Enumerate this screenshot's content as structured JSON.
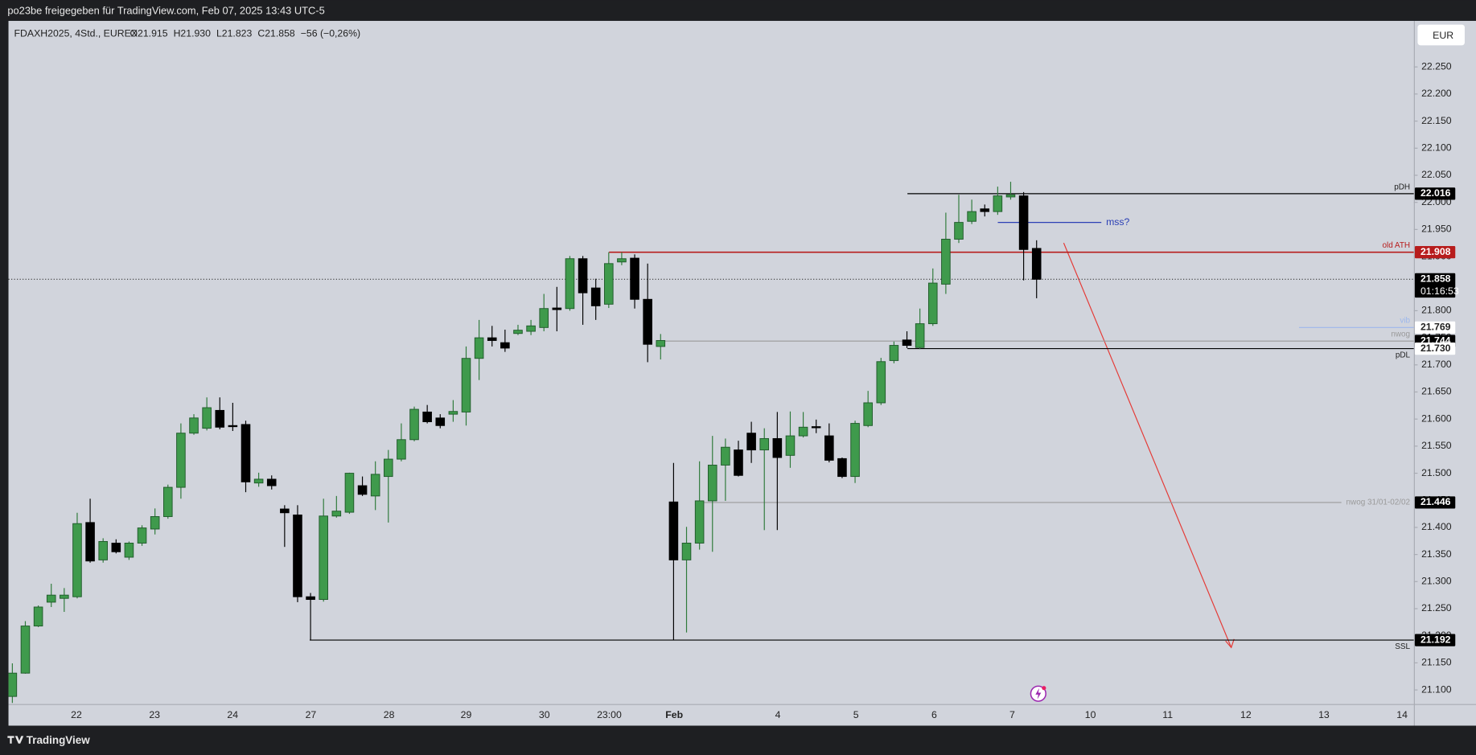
{
  "header": "po23be freigegeben für TradingView.com, Feb 07, 2025 13:43 UTC-5",
  "footer": "TradingView",
  "chart_data": {
    "type": "candlestick",
    "title": "FDAXH2025, 4Std., EUREX",
    "ohlc_legend": [
      "O21.915",
      "H21.930",
      "L21.823",
      "C21.858",
      "−56 (−0,26%)"
    ],
    "currency": "EUR",
    "up_color": "#3f9a4c",
    "down_color": "#000000",
    "open": [
      21088,
      21131,
      21218,
      21262,
      21269,
      21272,
      21409,
      21340,
      21371,
      21345,
      21371,
      21397,
      21420,
      21474,
      21574,
      21583,
      21616,
      21588,
      21590,
      21482,
      21489,
      21434,
      21423,
      21272,
      21267,
      21421,
      21428,
      21477,
      21458,
      21494,
      21526,
      21562,
      21613,
      21602,
      21609,
      21613,
      21712,
      21750,
      21741,
      21758,
      21762,
      21769,
      21805,
      21804,
      21896,
      21842,
      21812,
      21890,
      21897,
      21821,
      21734,
      21447,
      21340,
      21371,
      21449,
      21515,
      21543,
      21574,
      21543,
      21564,
      21533,
      21569,
      21586,
      21569,
      21527,
      21494,
      21588,
      21630,
      21708,
      21746,
      21732,
      21776,
      21849,
      21932,
      21965,
      21988,
      21983,
      22010,
      22012,
      21915
    ],
    "high": [
      21149,
      21227,
      21256,
      21296,
      21288,
      21427,
      21453,
      21380,
      21378,
      21374,
      21404,
      21435,
      21479,
      21592,
      21609,
      21640,
      21640,
      21630,
      21597,
      21501,
      21496,
      21441,
      21441,
      21279,
      21453,
      21458,
      21501,
      21494,
      21522,
      21543,
      21592,
      21623,
      21626,
      21609,
      21635,
      21734,
      21783,
      21772,
      21765,
      21774,
      21783,
      21831,
      21844,
      21901,
      21901,
      21859,
      21908,
      21908,
      21904,
      21887,
      21757,
      21519,
      21401,
      21522,
      21569,
      21564,
      21560,
      21595,
      21583,
      21613,
      21614,
      21613,
      21599,
      21592,
      21529,
      21597,
      21652,
      21713,
      21743,
      21762,
      21804,
      21878,
      21981,
      22014,
      22005,
      21996,
      22029,
      22038,
      22019,
      21930
    ],
    "low": [
      21076,
      21130,
      21216,
      21253,
      21244,
      21269,
      21335,
      21335,
      21352,
      21340,
      21366,
      21387,
      21416,
      21453,
      21571,
      21579,
      21581,
      21578,
      21465,
      21475,
      21470,
      21364,
      21262,
      21192,
      21263,
      21418,
      21425,
      21458,
      21432,
      21409,
      21522,
      21559,
      21592,
      21583,
      21595,
      21588,
      21672,
      21734,
      21724,
      21755,
      21755,
      21762,
      21762,
      21800,
      21774,
      21783,
      21805,
      21884,
      21804,
      21705,
      21710,
      21192,
      21206,
      21359,
      21355,
      21449,
      21494,
      21519,
      21395,
      21395,
      21510,
      21566,
      21574,
      21520,
      21491,
      21482,
      21585,
      21626,
      21703,
      21731,
      21729,
      21772,
      21831,
      21925,
      21960,
      21974,
      21977,
      22005,
      21856,
      21823
    ],
    "close": [
      21131,
      21218,
      21253,
      21275,
      21275,
      21407,
      21338,
      21374,
      21355,
      21371,
      21399,
      21420,
      21474,
      21574,
      21602,
      21621,
      21585,
      21586,
      21484,
      21489,
      21477,
      21427,
      21272,
      21267,
      21421,
      21430,
      21500,
      21461,
      21498,
      21526,
      21562,
      21618,
      21595,
      21588,
      21614,
      21712,
      21750,
      21745,
      21731,
      21764,
      21772,
      21804,
      21802,
      21896,
      21833,
      21809,
      21887,
      21896,
      21821,
      21738,
      21745,
      21340,
      21371,
      21449,
      21515,
      21548,
      21496,
      21543,
      21564,
      21529,
      21569,
      21585,
      21585,
      21524,
      21494,
      21592,
      21630,
      21706,
      21736,
      21736,
      21776,
      21851,
      21932,
      21963,
      21983,
      21983,
      22012,
      22014,
      21913,
      21858
    ],
    "xlim": [
      -0.3,
      108.1
    ],
    "xticks": [
      {
        "value": 4.94,
        "label": "22"
      },
      {
        "value": 10.97,
        "label": "23"
      },
      {
        "value": 16.99,
        "label": "24"
      },
      {
        "value": 23.02,
        "label": "27"
      },
      {
        "value": 29.05,
        "label": "28"
      },
      {
        "value": 35.0,
        "label": "29"
      },
      {
        "value": 41.03,
        "label": "30"
      },
      {
        "value": 46.04,
        "label": "23:00"
      },
      {
        "value": 51.05,
        "label": "Feb"
      },
      {
        "value": 59.04,
        "label": "4"
      },
      {
        "value": 65.07,
        "label": "5"
      },
      {
        "value": 71.1,
        "label": "6"
      },
      {
        "value": 77.12,
        "label": "7"
      },
      {
        "value": 83.15,
        "label": "10"
      },
      {
        "value": 89.11,
        "label": "11"
      },
      {
        "value": 95.14,
        "label": "12"
      },
      {
        "value": 101.16,
        "label": "13"
      },
      {
        "value": 107.19,
        "label": "14"
      }
    ],
    "ylim": [
      21074,
      22335
    ],
    "yticks": [
      {
        "value": 21100,
        "label": "21.100"
      },
      {
        "value": 21150,
        "label": "21.150"
      },
      {
        "value": 21200,
        "label": "21.200"
      },
      {
        "value": 21250,
        "label": "21.250"
      },
      {
        "value": 21300,
        "label": "21.300"
      },
      {
        "value": 21350,
        "label": "21.350"
      },
      {
        "value": 21400,
        "label": "21.400"
      },
      {
        "value": 21450,
        "label": "21.450"
      },
      {
        "value": 21500,
        "label": "21.500"
      },
      {
        "value": 21550,
        "label": "21.550"
      },
      {
        "value": 21600,
        "label": "21.600"
      },
      {
        "value": 21650,
        "label": "21.650"
      },
      {
        "value": 21700,
        "label": "21.700"
      },
      {
        "value": 21750,
        "label": "21.750"
      },
      {
        "value": 21800,
        "label": "21.800"
      },
      {
        "value": 21850,
        "label": "21.850"
      },
      {
        "value": 21900,
        "label": "21.900"
      },
      {
        "value": 21950,
        "label": "21.950"
      },
      {
        "value": 22000,
        "label": "22.000"
      },
      {
        "value": 22050,
        "label": "22.050"
      },
      {
        "value": 22100,
        "label": "22.100"
      },
      {
        "value": 22150,
        "label": "22.150"
      },
      {
        "value": 22200,
        "label": "22.200"
      },
      {
        "value": 22250,
        "label": "22.250"
      }
    ],
    "grid": false,
    "levels": [
      {
        "label": "pDH",
        "value": 22016,
        "value_label": "22.016",
        "color": "#000000",
        "tag_color": "#000000"
      },
      {
        "label": "mss?",
        "value": 21963,
        "color": "#2b3fb5"
      },
      {
        "label": "old ATH",
        "value": 21908,
        "value_label": "21.908",
        "color": "#b71c1c",
        "tag_color": "#b71c1c"
      },
      {
        "label": "vib",
        "value": 21769,
        "value_label": "21.769",
        "color": "#9db7ec",
        "tag_color": "#ffffff"
      },
      {
        "label": "nwog",
        "value": 21744,
        "value_label": "21.744",
        "color": "#9a9a9a",
        "tag_color": "#000000"
      },
      {
        "label": "pDL",
        "value": 21730,
        "value_label": "21.730",
        "color": "#000000",
        "tag_color": "#ffffff"
      },
      {
        "label": "nwog 31/01-02/02",
        "value": 21446,
        "value_label": "21.446",
        "color": "#9a9a9a",
        "tag_color": "#000000"
      },
      {
        "label": "SSL",
        "value": 21192,
        "value_label": "21.192",
        "color": "#000000",
        "tag_color": "#000000"
      }
    ],
    "last_price": {
      "value": 21858,
      "value_label": "21.858",
      "countdown": "01:16:53"
    }
  }
}
